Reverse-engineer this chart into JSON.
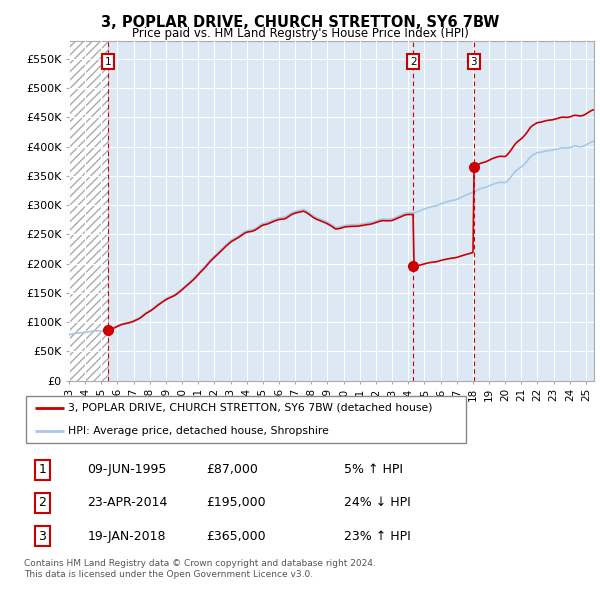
{
  "title": "3, POPLAR DRIVE, CHURCH STRETTON, SY6 7BW",
  "subtitle": "Price paid vs. HM Land Registry's House Price Index (HPI)",
  "ylim": [
    0,
    580000
  ],
  "yticks": [
    0,
    50000,
    100000,
    150000,
    200000,
    250000,
    300000,
    350000,
    400000,
    450000,
    500000,
    550000
  ],
  "ytick_labels": [
    "£0",
    "£50K",
    "£100K",
    "£150K",
    "£200K",
    "£250K",
    "£300K",
    "£350K",
    "£400K",
    "£450K",
    "£500K",
    "£550K"
  ],
  "xlim_start": 1993,
  "xlim_end": 2025.5,
  "sale_years": [
    1995.44,
    2014.31,
    2018.05
  ],
  "sale_prices": [
    87000,
    195000,
    365000
  ],
  "sale_labels": [
    "1",
    "2",
    "3"
  ],
  "hpi_color": "#a8c8e8",
  "price_color": "#cc0000",
  "hatch_end": 1995.44,
  "chart_bg": "#dce8f4",
  "hatch_bg": "#ffffff",
  "grid_color": "#ffffff",
  "legend_price": "3, POPLAR DRIVE, CHURCH STRETTON, SY6 7BW (detached house)",
  "legend_hpi": "HPI: Average price, detached house, Shropshire",
  "table_data": [
    [
      "1",
      "09-JUN-1995",
      "£87,000",
      "5% ↑ HPI"
    ],
    [
      "2",
      "23-APR-2014",
      "£195,000",
      "24% ↓ HPI"
    ],
    [
      "3",
      "19-JAN-2018",
      "£365,000",
      "23% ↑ HPI"
    ]
  ],
  "footnote": "Contains HM Land Registry data © Crown copyright and database right 2024.\nThis data is licensed under the Open Government Licence v3.0."
}
